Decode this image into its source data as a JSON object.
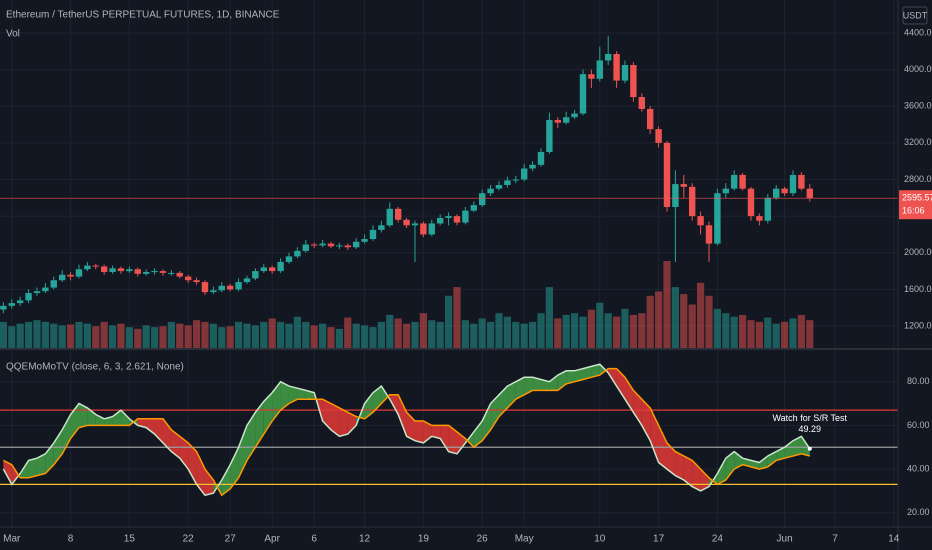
{
  "chart_data": [
    {
      "type": "candlestick",
      "title": "Ethereum / TetherUS PERPETUAL FUTURES, 1D, BINANCE",
      "volume_label": "Vol",
      "currency": "USDT",
      "countdown": "16:06",
      "open": [
        1380,
        1420,
        1450,
        1480,
        1560,
        1580,
        1620,
        1700,
        1760,
        1740,
        1820,
        1860,
        1850,
        1790,
        1830,
        1800,
        1820,
        1770,
        1790,
        1800,
        1780,
        1780,
        1740,
        1700,
        1680,
        1570,
        1590,
        1640,
        1600,
        1680,
        1720,
        1800,
        1840,
        1800,
        1900,
        1960,
        2020,
        2090,
        2080,
        2100,
        2070,
        2080,
        2060,
        2120,
        2150,
        2250,
        2300,
        2480,
        2360,
        2300,
        2320,
        2200,
        2320,
        2380,
        2400,
        2330,
        2460,
        2520,
        2650,
        2700,
        2740,
        2790,
        2800,
        2920,
        2960,
        3100,
        3450,
        3420,
        3480,
        3520,
        3950,
        3900,
        4100,
        4170,
        3880,
        4050,
        3700,
        3570,
        3350,
        3200,
        2500,
        2750,
        2720,
        2400,
        2300,
        2100,
        2650,
        2700,
        2850,
        2700,
        2400,
        2350,
        2600,
        2700,
        2650,
        2850,
        2700
      ],
      "high": [
        1460,
        1490,
        1520,
        1600,
        1620,
        1670,
        1740,
        1810,
        1790,
        1870,
        1900,
        1880,
        1870,
        1860,
        1850,
        1850,
        1840,
        1820,
        1830,
        1820,
        1810,
        1800,
        1760,
        1730,
        1700,
        1630,
        1680,
        1660,
        1720,
        1750,
        1830,
        1880,
        1860,
        1940,
        2000,
        2060,
        2140,
        2110,
        2140,
        2120,
        2110,
        2100,
        2160,
        2200,
        2300,
        2350,
        2550,
        2500,
        2380,
        2350,
        2340,
        2360,
        2420,
        2440,
        2420,
        2500,
        2560,
        2690,
        2740,
        2780,
        2830,
        2840,
        2970,
        3000,
        3140,
        3530,
        3480,
        3540,
        3560,
        4000,
        4000,
        4250,
        4370,
        4200,
        4100,
        4080,
        3740,
        3600,
        3380,
        3220,
        2900,
        2850,
        2760,
        2450,
        2340,
        2700,
        2760,
        2900,
        2870,
        2720,
        2430,
        2640,
        2740,
        2720,
        2900,
        2880,
        2750
      ],
      "low": [
        1340,
        1390,
        1420,
        1450,
        1530,
        1560,
        1600,
        1680,
        1700,
        1720,
        1800,
        1820,
        1760,
        1770,
        1770,
        1780,
        1740,
        1750,
        1760,
        1750,
        1750,
        1720,
        1670,
        1650,
        1540,
        1550,
        1570,
        1580,
        1580,
        1660,
        1700,
        1780,
        1770,
        1780,
        1880,
        1940,
        2000,
        2050,
        2060,
        2050,
        2040,
        2030,
        2040,
        2100,
        2130,
        2220,
        2280,
        2330,
        2270,
        1900,
        2170,
        2180,
        2300,
        2300,
        2300,
        2310,
        2440,
        2500,
        2620,
        2680,
        2710,
        2760,
        2780,
        2890,
        2940,
        3080,
        3360,
        3400,
        3460,
        3500,
        3800,
        3870,
        4050,
        3800,
        3850,
        3650,
        3540,
        3300,
        3150,
        2450,
        1900,
        2600,
        2350,
        2200,
        1900,
        2080,
        2600,
        2680,
        2680,
        2350,
        2300,
        2320,
        2580,
        2620,
        2620,
        2680,
        2560
      ],
      "close": [
        1420,
        1450,
        1480,
        1560,
        1580,
        1620,
        1700,
        1760,
        1740,
        1820,
        1860,
        1850,
        1790,
        1830,
        1800,
        1820,
        1770,
        1790,
        1800,
        1780,
        1780,
        1740,
        1700,
        1680,
        1570,
        1590,
        1640,
        1600,
        1680,
        1720,
        1800,
        1840,
        1800,
        1900,
        1960,
        2020,
        2090,
        2080,
        2100,
        2070,
        2080,
        2060,
        2120,
        2150,
        2250,
        2300,
        2480,
        2360,
        2300,
        2320,
        2200,
        2320,
        2380,
        2400,
        2330,
        2460,
        2520,
        2650,
        2700,
        2740,
        2790,
        2800,
        2920,
        2960,
        3100,
        3450,
        3420,
        3480,
        3520,
        3950,
        3900,
        4100,
        4170,
        3880,
        4050,
        3700,
        3570,
        3350,
        3200,
        2500,
        2750,
        2720,
        2400,
        2300,
        2100,
        2650,
        2700,
        2850,
        2700,
        2400,
        2350,
        2600,
        2700,
        2650,
        2850,
        2700,
        2595.57
      ],
      "volume": [
        30,
        25,
        28,
        30,
        32,
        30,
        28,
        26,
        27,
        30,
        28,
        25,
        30,
        26,
        28,
        24,
        22,
        26,
        24,
        25,
        30,
        28,
        26,
        32,
        30,
        28,
        24,
        25,
        30,
        28,
        26,
        30,
        34,
        30,
        28,
        36,
        30,
        26,
        28,
        24,
        22,
        35,
        28,
        26,
        24,
        30,
        38,
        34,
        28,
        30,
        40,
        32,
        30,
        60,
        70,
        32,
        28,
        34,
        30,
        40,
        36,
        30,
        28,
        30,
        40,
        70,
        34,
        38,
        40,
        36,
        44,
        52,
        40,
        36,
        45,
        38,
        40,
        60,
        65,
        100,
        70,
        62,
        50,
        75,
        60,
        45,
        40,
        36,
        38,
        32,
        30,
        35,
        28,
        30,
        34,
        38,
        32
      ],
      "volume_ylim": [
        0,
        400
      ],
      "up_color": "#26a69a",
      "down_color": "#ef5350",
      "grid": true,
      "xlim": [
        -0.4,
        106.5
      ],
      "ylim": [
        960,
        4760
      ],
      "yticks": [
        {
          "value": 1200,
          "label": "1200.00"
        },
        {
          "value": 1600,
          "label": "1600.00"
        },
        {
          "value": 2000,
          "label": "2000.00"
        },
        {
          "value": 2400,
          "label": "2400.00"
        },
        {
          "value": 2800,
          "label": "2800.00"
        },
        {
          "value": 3200,
          "label": "3200.00"
        },
        {
          "value": 3600,
          "label": "3600.00"
        },
        {
          "value": 4000,
          "label": "4000.00"
        },
        {
          "value": 4400,
          "label": "4400.00"
        }
      ]
    },
    {
      "type": "qqe",
      "title": "QQEMoMoTV (close, 6, 3, 2.621, None)",
      "series": [
        {
          "color": "#c8e6c9",
          "values": [
            40,
            33,
            38,
            44,
            45,
            47,
            52,
            58,
            65,
            70,
            68,
            65,
            63,
            64,
            67,
            63,
            60,
            59,
            56,
            52,
            48,
            45,
            40,
            33,
            28,
            29,
            35,
            42,
            50,
            60,
            66,
            71,
            75,
            80,
            78,
            77,
            76,
            75,
            62,
            58,
            55,
            56,
            60,
            70,
            75,
            78,
            72,
            65,
            55,
            53,
            52,
            55,
            54,
            48,
            47,
            52,
            57,
            62,
            70,
            74,
            78,
            80,
            82,
            82,
            81,
            80,
            83,
            85,
            85,
            86,
            87,
            88,
            84,
            78,
            72,
            66,
            60,
            53,
            43,
            40,
            37,
            35,
            32,
            30,
            32,
            38,
            45,
            48,
            45,
            44,
            43,
            46,
            48,
            50,
            53,
            55,
            49.29
          ]
        },
        {
          "color": "#ff9800",
          "values": [
            44,
            42,
            36,
            36,
            37,
            38,
            42,
            47,
            54,
            59,
            60,
            60,
            60,
            60,
            60,
            60,
            63,
            63,
            63,
            63,
            58,
            55,
            52,
            48,
            40,
            35,
            28,
            31,
            36,
            44,
            50,
            56,
            62,
            67,
            70,
            72,
            72,
            72,
            72,
            70,
            68,
            66,
            64,
            63,
            66,
            70,
            74,
            74,
            66,
            62,
            62,
            60,
            60,
            60,
            57,
            54,
            50,
            53,
            58,
            64,
            68,
            72,
            74,
            76,
            76,
            76,
            76,
            79,
            80,
            81,
            82,
            83,
            86,
            86,
            82,
            76,
            72,
            68,
            60,
            52,
            48,
            46,
            44,
            40,
            36,
            33,
            35,
            40,
            42,
            41,
            40,
            41,
            44,
            45,
            46,
            47,
            46
          ]
        }
      ],
      "up_fill": "#43a047",
      "down_fill": "#e53935",
      "levels": [
        {
          "value": 67,
          "color": "#e53935"
        },
        {
          "value": 50,
          "color": "#9e9e9e"
        },
        {
          "value": 33,
          "color": "#fbc02d"
        }
      ],
      "annotation": "Watch for S/R Test",
      "grid": true,
      "xlim": [
        -0.4,
        106.5
      ],
      "ylim": [
        13.5,
        94.5
      ],
      "yticks": [
        {
          "value": 20,
          "label": "20.00"
        },
        {
          "value": 40,
          "label": "40.00"
        },
        {
          "value": 60,
          "label": "60.00"
        },
        {
          "value": 80,
          "label": "80.00"
        }
      ],
      "xticks": [
        {
          "value": 1,
          "label": "Mar"
        },
        {
          "value": 8,
          "label": "8"
        },
        {
          "value": 15,
          "label": "15"
        },
        {
          "value": 22,
          "label": "22"
        },
        {
          "value": 27,
          "label": "27"
        },
        {
          "value": 32,
          "label": "Apr"
        },
        {
          "value": 37,
          "label": "6"
        },
        {
          "value": 43,
          "label": "12"
        },
        {
          "value": 50,
          "label": "19"
        },
        {
          "value": 57,
          "label": "26"
        },
        {
          "value": 62,
          "label": "May"
        },
        {
          "value": 71,
          "label": "10"
        },
        {
          "value": 78,
          "label": "17"
        },
        {
          "value": 85,
          "label": "24"
        },
        {
          "value": 93,
          "label": "Jun"
        },
        {
          "value": 99,
          "label": "7"
        },
        {
          "value": 106,
          "label": "14"
        }
      ]
    }
  ]
}
